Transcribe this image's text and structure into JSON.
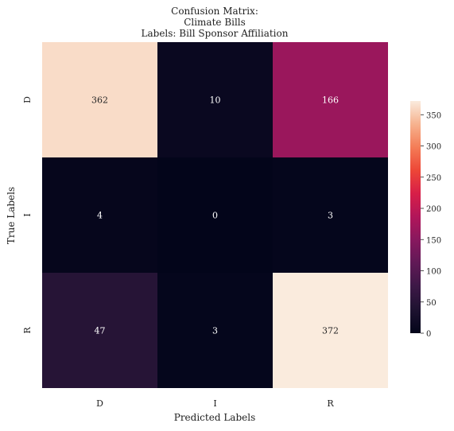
{
  "chart_data": {
    "type": "heatmap",
    "title_lines": [
      "Confusion Matrix:",
      "Climate Bills",
      "Labels: Bill Sponsor Affiliation"
    ],
    "xlabel": "Predicted Labels",
    "ylabel": "True Labels",
    "x_categories": [
      "D",
      "I",
      "R"
    ],
    "y_categories": [
      "D",
      "I",
      "R"
    ],
    "values": [
      [
        362,
        10,
        166
      ],
      [
        4,
        0,
        3
      ],
      [
        47,
        3,
        372
      ]
    ],
    "colorbar": {
      "min": 0,
      "max": 372,
      "ticks": [
        0,
        50,
        100,
        150,
        200,
        250,
        300,
        350
      ]
    },
    "colormap": "rocket",
    "grid": false
  }
}
